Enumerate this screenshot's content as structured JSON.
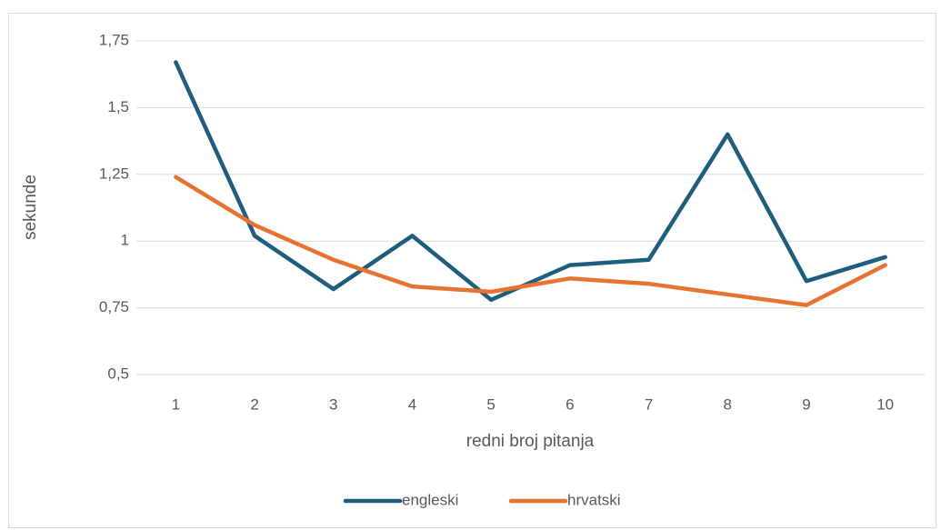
{
  "chart_data": {
    "type": "line",
    "x_label": "redni broj pitanja",
    "y_label": "sekunde",
    "categories": [
      "1",
      "2",
      "3",
      "4",
      "5",
      "6",
      "7",
      "8",
      "9",
      "10"
    ],
    "series": [
      {
        "name": "engleski",
        "color": "#1f5d7e",
        "values": [
          1.67,
          1.02,
          0.82,
          1.02,
          0.78,
          0.91,
          0.93,
          1.4,
          0.85,
          0.94
        ]
      },
      {
        "name": "hrvatski",
        "color": "#e8722f",
        "values": [
          1.24,
          1.06,
          0.93,
          0.83,
          0.81,
          0.86,
          0.84,
          0.8,
          0.76,
          0.91
        ]
      }
    ],
    "ylim": [
      0.5,
      1.75
    ],
    "yticks": [
      {
        "value": 0.5,
        "label": "0,5"
      },
      {
        "value": 0.75,
        "label": "0,75"
      },
      1,
      {
        "value": 1.25,
        "label": "1,25"
      },
      {
        "value": 1.5,
        "label": "1,5"
      },
      {
        "value": 1.75,
        "label": "1,75"
      }
    ],
    "grid": true,
    "legend": "bottom"
  }
}
